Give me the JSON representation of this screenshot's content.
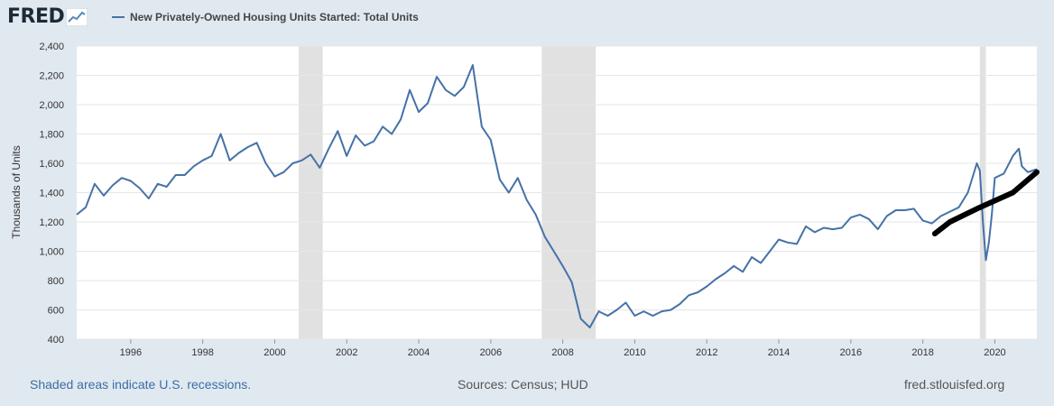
{
  "header": {
    "logo_text": "FRED",
    "legend_label": "New Privately-Owned Housing Units Started: Total Units"
  },
  "footer": {
    "recession_note": "Shaded areas indicate U.S. recessions.",
    "sources": "Sources: Census; HUD",
    "site": "fred.stlouisfed.org"
  },
  "colors": {
    "series": "#4572a7",
    "recession": "#e1e1e1",
    "annotation": "#000000",
    "background": "#e1e9f0"
  },
  "chart_data": {
    "type": "line",
    "title": "",
    "xlabel": "",
    "ylabel": "Thousands of Units",
    "xlim": [
      "1995-01",
      "2021-09"
    ],
    "ylim": [
      400,
      2400
    ],
    "yticks": [
      400,
      600,
      800,
      1000,
      1200,
      1400,
      1600,
      1800,
      2000,
      2200,
      2400
    ],
    "xtick_labels": [
      "1996",
      "1998",
      "2000",
      "2002",
      "2004",
      "2006",
      "2008",
      "2010",
      "2012",
      "2014",
      "2016",
      "2018",
      "2020"
    ],
    "grid": "horizontal",
    "legend_position": "top",
    "recessions": [
      {
        "start": "2001-03",
        "end": "2001-11"
      },
      {
        "start": "2007-12",
        "end": "2009-06"
      },
      {
        "start": "2020-02",
        "end": "2020-04"
      }
    ],
    "series": [
      {
        "name": "New Privately-Owned Housing Units Started: Total Units",
        "x": [
          "1995-01",
          "1995-04",
          "1995-07",
          "1995-10",
          "1996-01",
          "1996-04",
          "1996-07",
          "1996-10",
          "1997-01",
          "1997-04",
          "1997-07",
          "1997-10",
          "1998-01",
          "1998-04",
          "1998-07",
          "1998-10",
          "1999-01",
          "1999-04",
          "1999-07",
          "1999-10",
          "2000-01",
          "2000-04",
          "2000-07",
          "2000-10",
          "2001-01",
          "2001-04",
          "2001-07",
          "2001-10",
          "2002-01",
          "2002-04",
          "2002-07",
          "2002-10",
          "2003-01",
          "2003-04",
          "2003-07",
          "2003-10",
          "2004-01",
          "2004-04",
          "2004-07",
          "2004-10",
          "2005-01",
          "2005-04",
          "2005-07",
          "2005-10",
          "2006-01",
          "2006-04",
          "2006-07",
          "2006-10",
          "2007-01",
          "2007-04",
          "2007-07",
          "2007-10",
          "2008-01",
          "2008-04",
          "2008-07",
          "2008-10",
          "2009-01",
          "2009-04",
          "2009-07",
          "2009-10",
          "2010-01",
          "2010-04",
          "2010-07",
          "2010-10",
          "2011-01",
          "2011-04",
          "2011-07",
          "2011-10",
          "2012-01",
          "2012-04",
          "2012-07",
          "2012-10",
          "2013-01",
          "2013-04",
          "2013-07",
          "2013-10",
          "2014-01",
          "2014-04",
          "2014-07",
          "2014-10",
          "2015-01",
          "2015-04",
          "2015-07",
          "2015-10",
          "2016-01",
          "2016-04",
          "2016-07",
          "2016-10",
          "2017-01",
          "2017-04",
          "2017-07",
          "2017-10",
          "2018-01",
          "2018-04",
          "2018-07",
          "2018-10",
          "2019-01",
          "2019-04",
          "2019-07",
          "2019-10",
          "2020-01",
          "2020-02",
          "2020-03",
          "2020-04",
          "2020-05",
          "2020-06",
          "2020-07",
          "2020-10",
          "2021-01",
          "2021-03",
          "2021-04",
          "2021-06",
          "2021-09"
        ],
        "values": [
          1250,
          1300,
          1460,
          1380,
          1450,
          1500,
          1480,
          1430,
          1360,
          1460,
          1440,
          1520,
          1520,
          1580,
          1620,
          1650,
          1800,
          1620,
          1670,
          1710,
          1740,
          1600,
          1510,
          1540,
          1600,
          1620,
          1660,
          1570,
          1700,
          1820,
          1650,
          1790,
          1720,
          1750,
          1850,
          1800,
          1900,
          2100,
          1950,
          2010,
          2190,
          2100,
          2060,
          2120,
          2270,
          1850,
          1760,
          1490,
          1400,
          1500,
          1350,
          1250,
          1100,
          1000,
          900,
          790,
          540,
          480,
          590,
          560,
          600,
          650,
          560,
          590,
          560,
          590,
          600,
          640,
          700,
          720,
          760,
          810,
          850,
          900,
          860,
          960,
          920,
          1000,
          1080,
          1060,
          1050,
          1170,
          1130,
          1160,
          1150,
          1160,
          1230,
          1250,
          1220,
          1150,
          1240,
          1280,
          1280,
          1290,
          1210,
          1190,
          1240,
          1270,
          1300,
          1400,
          1600,
          1550,
          1200,
          940,
          1060,
          1250,
          1500,
          1530,
          1650,
          1700,
          1580,
          1540,
          1560
        ]
      }
    ],
    "annotation": {
      "description": "hand-drawn trend line",
      "x": [
        "2018-11",
        "2019-04",
        "2020-01",
        "2021-01",
        "2021-09"
      ],
      "values": [
        1120,
        1200,
        1290,
        1400,
        1540
      ]
    }
  }
}
